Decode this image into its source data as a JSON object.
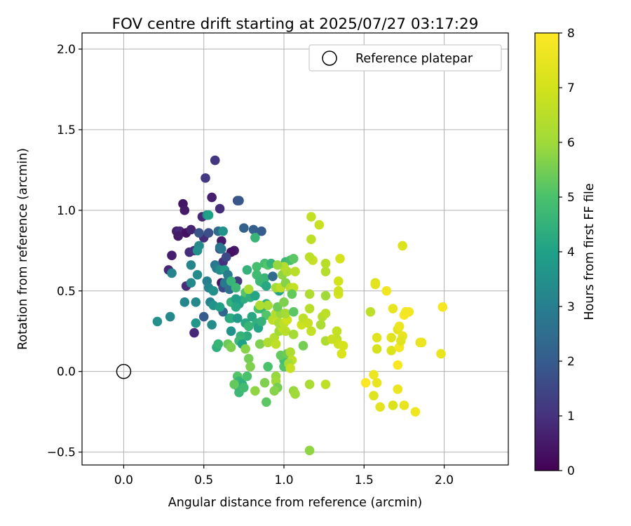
{
  "chart_data": {
    "type": "scatter",
    "title": "FOV centre drift starting at 2025/07/27 03:17:29",
    "xlabel": "Angular distance from reference (arcmin)",
    "ylabel": "Rotation from reference (arcmin)",
    "xlim": [
      -0.26,
      2.4
    ],
    "ylim": [
      -0.58,
      2.1
    ],
    "x_ticks": [
      0.0,
      0.5,
      1.0,
      1.5,
      2.0
    ],
    "x_tick_labels": [
      "0.0",
      "0.5",
      "1.0",
      "1.5",
      "2.0"
    ],
    "y_ticks": [
      -0.5,
      0.0,
      0.5,
      1.0,
      1.5,
      2.0
    ],
    "y_tick_labels": [
      "−0.5",
      "0.0",
      "0.5",
      "1.0",
      "1.5",
      "2.0"
    ],
    "grid": true,
    "legend": {
      "position": "top-right",
      "label": "Reference platepar"
    },
    "reference_point": {
      "x": 0.0,
      "y": 0.0
    },
    "colorbar": {
      "label": "Hours from first FF file",
      "range": [
        0,
        8
      ],
      "ticks": [
        0,
        1,
        2,
        3,
        4,
        5,
        6,
        7,
        8
      ],
      "tick_labels": [
        "0",
        "1",
        "2",
        "3",
        "4",
        "5",
        "6",
        "7",
        "8"
      ],
      "colormap": "viridis"
    },
    "points": [
      {
        "x": 0.37,
        "y": 1.04,
        "c": 0.4
      },
      {
        "x": 0.38,
        "y": 1.0,
        "c": 0.5
      },
      {
        "x": 0.33,
        "y": 0.87,
        "c": 0.6
      },
      {
        "x": 0.35,
        "y": 0.87,
        "c": 0.8
      },
      {
        "x": 0.39,
        "y": 0.86,
        "c": 0.3
      },
      {
        "x": 0.42,
        "y": 0.88,
        "c": 0.7
      },
      {
        "x": 0.34,
        "y": 0.84,
        "c": 0.5
      },
      {
        "x": 0.3,
        "y": 0.72,
        "c": 0.6
      },
      {
        "x": 0.28,
        "y": 0.63,
        "c": 0.8
      },
      {
        "x": 0.41,
        "y": 0.74,
        "c": 0.9
      },
      {
        "x": 0.44,
        "y": 0.75,
        "c": 1.0
      },
      {
        "x": 0.39,
        "y": 0.53,
        "c": 0.9
      },
      {
        "x": 0.44,
        "y": 0.24,
        "c": 0.8
      },
      {
        "x": 0.51,
        "y": 1.2,
        "c": 1.2
      },
      {
        "x": 0.57,
        "y": 1.31,
        "c": 1.1
      },
      {
        "x": 0.55,
        "y": 1.08,
        "c": 0.6
      },
      {
        "x": 0.6,
        "y": 1.01,
        "c": 0.9
      },
      {
        "x": 0.49,
        "y": 0.96,
        "c": 0.8
      },
      {
        "x": 0.5,
        "y": 0.83,
        "c": 0.9
      },
      {
        "x": 0.53,
        "y": 0.86,
        "c": 1.7
      },
      {
        "x": 0.47,
        "y": 0.86,
        "c": 1.8
      },
      {
        "x": 0.61,
        "y": 0.81,
        "c": 0.5
      },
      {
        "x": 0.6,
        "y": 0.76,
        "c": 1.3
      },
      {
        "x": 0.69,
        "y": 0.75,
        "c": 0.5
      },
      {
        "x": 0.67,
        "y": 0.74,
        "c": 0.3
      },
      {
        "x": 0.62,
        "y": 0.68,
        "c": 1.0
      },
      {
        "x": 0.64,
        "y": 0.71,
        "c": 1.5
      },
      {
        "x": 0.61,
        "y": 0.55,
        "c": 0.4
      },
      {
        "x": 0.62,
        "y": 0.52,
        "c": 1.6
      },
      {
        "x": 0.71,
        "y": 0.56,
        "c": 1.2
      },
      {
        "x": 0.5,
        "y": 0.34,
        "c": 2.0
      },
      {
        "x": 0.71,
        "y": 1.06,
        "c": 1.7
      },
      {
        "x": 0.72,
        "y": 1.06,
        "c": 1.9
      },
      {
        "x": 0.75,
        "y": 0.89,
        "c": 2.2
      },
      {
        "x": 0.81,
        "y": 0.88,
        "c": 2.1
      },
      {
        "x": 0.86,
        "y": 0.87,
        "c": 2.0
      },
      {
        "x": 0.52,
        "y": 0.97,
        "c": 3.3
      },
      {
        "x": 0.53,
        "y": 0.97,
        "c": 4.0
      },
      {
        "x": 0.59,
        "y": 0.87,
        "c": 2.4
      },
      {
        "x": 0.62,
        "y": 0.87,
        "c": 3.6
      },
      {
        "x": 0.47,
        "y": 0.78,
        "c": 3.3
      },
      {
        "x": 0.46,
        "y": 0.75,
        "c": 3.5
      },
      {
        "x": 0.6,
        "y": 0.77,
        "c": 2.6
      },
      {
        "x": 0.61,
        "y": 0.76,
        "c": 2.8
      },
      {
        "x": 0.42,
        "y": 0.66,
        "c": 3.2
      },
      {
        "x": 0.46,
        "y": 0.6,
        "c": 3.4
      },
      {
        "x": 0.57,
        "y": 0.66,
        "c": 2.7
      },
      {
        "x": 0.58,
        "y": 0.64,
        "c": 2.9
      },
      {
        "x": 0.6,
        "y": 0.63,
        "c": 3.4
      },
      {
        "x": 0.63,
        "y": 0.63,
        "c": 3.8
      },
      {
        "x": 0.65,
        "y": 0.6,
        "c": 2.9
      },
      {
        "x": 0.3,
        "y": 0.61,
        "c": 3.1
      },
      {
        "x": 0.42,
        "y": 0.55,
        "c": 3.3
      },
      {
        "x": 0.52,
        "y": 0.56,
        "c": 3.0
      },
      {
        "x": 0.53,
        "y": 0.52,
        "c": 3.2
      },
      {
        "x": 0.56,
        "y": 0.5,
        "c": 3.5
      },
      {
        "x": 0.63,
        "y": 0.55,
        "c": 2.8
      },
      {
        "x": 0.66,
        "y": 0.51,
        "c": 2.6
      },
      {
        "x": 0.38,
        "y": 0.43,
        "c": 3.2
      },
      {
        "x": 0.45,
        "y": 0.43,
        "c": 3.3
      },
      {
        "x": 0.54,
        "y": 0.43,
        "c": 3.1
      },
      {
        "x": 0.56,
        "y": 0.41,
        "c": 3.6
      },
      {
        "x": 0.62,
        "y": 0.37,
        "c": 2.3
      },
      {
        "x": 0.6,
        "y": 0.4,
        "c": 3.9
      },
      {
        "x": 0.21,
        "y": 0.31,
        "c": 3.5
      },
      {
        "x": 0.29,
        "y": 0.34,
        "c": 3.3
      },
      {
        "x": 0.45,
        "y": 0.3,
        "c": 3.7
      },
      {
        "x": 0.55,
        "y": 0.29,
        "c": 3.4
      },
      {
        "x": 0.58,
        "y": 0.15,
        "c": 4.4
      },
      {
        "x": 0.59,
        "y": 0.17,
        "c": 4.6
      },
      {
        "x": 0.66,
        "y": 0.33,
        "c": 4.1
      },
      {
        "x": 0.67,
        "y": 0.33,
        "c": 4.3
      },
      {
        "x": 0.71,
        "y": 0.33,
        "c": 3.8
      },
      {
        "x": 0.76,
        "y": 0.3,
        "c": 4.2
      },
      {
        "x": 0.67,
        "y": 0.25,
        "c": 3.6
      },
      {
        "x": 0.72,
        "y": 0.42,
        "c": 4.0
      },
      {
        "x": 0.75,
        "y": 0.45,
        "c": 4.3
      },
      {
        "x": 0.67,
        "y": 0.43,
        "c": 4.5
      },
      {
        "x": 0.7,
        "y": 0.45,
        "c": 3.9
      },
      {
        "x": 0.7,
        "y": 0.4,
        "c": 4.2
      },
      {
        "x": 0.67,
        "y": 0.56,
        "c": 4.6
      },
      {
        "x": 0.7,
        "y": 0.52,
        "c": 4.7
      },
      {
        "x": 0.76,
        "y": 0.49,
        "c": 5.1
      },
      {
        "x": 0.79,
        "y": 0.46,
        "c": 4.4
      },
      {
        "x": 0.82,
        "y": 0.47,
        "c": 4.1
      },
      {
        "x": 0.77,
        "y": 0.63,
        "c": 4.5
      },
      {
        "x": 0.83,
        "y": 0.65,
        "c": 4.9
      },
      {
        "x": 0.83,
        "y": 0.6,
        "c": 4.8
      },
      {
        "x": 0.87,
        "y": 0.55,
        "c": 4.3
      },
      {
        "x": 0.88,
        "y": 0.58,
        "c": 4.6
      },
      {
        "x": 0.88,
        "y": 0.67,
        "c": 4.9
      },
      {
        "x": 0.9,
        "y": 0.66,
        "c": 5.1
      },
      {
        "x": 0.85,
        "y": 0.56,
        "c": 4.7
      },
      {
        "x": 0.89,
        "y": 0.53,
        "c": 4.2
      },
      {
        "x": 0.92,
        "y": 0.67,
        "c": 4.5
      },
      {
        "x": 0.93,
        "y": 0.59,
        "c": 2.4
      },
      {
        "x": 0.96,
        "y": 0.51,
        "c": 4.4
      },
      {
        "x": 0.97,
        "y": 0.5,
        "c": 4.1
      },
      {
        "x": 1.01,
        "y": 0.68,
        "c": 4.7
      },
      {
        "x": 1.04,
        "y": 0.69,
        "c": 4.9
      },
      {
        "x": 1.06,
        "y": 0.7,
        "c": 5.2
      },
      {
        "x": 0.82,
        "y": 0.83,
        "c": 4.6
      },
      {
        "x": 0.84,
        "y": 0.39,
        "c": 5.0
      },
      {
        "x": 0.86,
        "y": 0.39,
        "c": 4.6
      },
      {
        "x": 0.89,
        "y": 0.42,
        "c": 4.4
      },
      {
        "x": 0.89,
        "y": 0.35,
        "c": 5.1
      },
      {
        "x": 0.8,
        "y": 0.34,
        "c": 4.2
      },
      {
        "x": 0.83,
        "y": 0.3,
        "c": 4.4
      },
      {
        "x": 0.84,
        "y": 0.27,
        "c": 4.1
      },
      {
        "x": 0.86,
        "y": 0.31,
        "c": 4.5
      },
      {
        "x": 0.78,
        "y": 0.28,
        "c": 4.6
      },
      {
        "x": 0.77,
        "y": 0.22,
        "c": 4.3
      },
      {
        "x": 0.73,
        "y": 0.22,
        "c": 4.5
      },
      {
        "x": 0.72,
        "y": 0.19,
        "c": 4.7
      },
      {
        "x": 0.74,
        "y": 0.17,
        "c": 4.0
      },
      {
        "x": 0.65,
        "y": 0.17,
        "c": 5.4
      },
      {
        "x": 0.67,
        "y": 0.15,
        "c": 5.6
      },
      {
        "x": 0.76,
        "y": 0.14,
        "c": 5.7
      },
      {
        "x": 0.78,
        "y": 0.08,
        "c": 5.5
      },
      {
        "x": 0.71,
        "y": -0.03,
        "c": 5.1
      },
      {
        "x": 0.72,
        "y": -0.06,
        "c": 4.6
      },
      {
        "x": 0.71,
        "y": -0.09,
        "c": 4.9
      },
      {
        "x": 0.74,
        "y": -0.08,
        "c": 4.4
      },
      {
        "x": 0.69,
        "y": -0.08,
        "c": 5.3
      },
      {
        "x": 0.72,
        "y": -0.13,
        "c": 4.7
      },
      {
        "x": 0.75,
        "y": -0.1,
        "c": 4.8
      },
      {
        "x": 0.77,
        "y": -0.03,
        "c": 5.0
      },
      {
        "x": 0.79,
        "y": 0.03,
        "c": 5.6
      },
      {
        "x": 0.82,
        "y": -0.12,
        "c": 5.8
      },
      {
        "x": 0.88,
        "y": -0.07,
        "c": 5.6
      },
      {
        "x": 0.89,
        "y": -0.19,
        "c": 5.2
      },
      {
        "x": 0.9,
        "y": 0.03,
        "c": 5.0
      },
      {
        "x": 0.95,
        "y": -0.03,
        "c": 5.9
      },
      {
        "x": 0.95,
        "y": -0.06,
        "c": 6.0
      },
      {
        "x": 0.96,
        "y": -0.1,
        "c": 5.5
      },
      {
        "x": 0.94,
        "y": -0.12,
        "c": 5.7
      },
      {
        "x": 1.0,
        "y": 0.03,
        "c": 5.1
      },
      {
        "x": 1.0,
        "y": 0.07,
        "c": 4.9
      },
      {
        "x": 0.98,
        "y": 0.1,
        "c": 5.3
      },
      {
        "x": 1.02,
        "y": 0.11,
        "c": 5.4
      },
      {
        "x": 1.04,
        "y": 0.12,
        "c": 6.3
      },
      {
        "x": 1.05,
        "y": 0.07,
        "c": 6.6
      },
      {
        "x": 1.03,
        "y": 0.05,
        "c": 6.1
      },
      {
        "x": 1.04,
        "y": 0.02,
        "c": 6.8
      },
      {
        "x": 1.06,
        "y": -0.12,
        "c": 5.9
      },
      {
        "x": 1.07,
        "y": -0.14,
        "c": 6.0
      },
      {
        "x": 1.16,
        "y": -0.08,
        "c": 6.2
      },
      {
        "x": 1.16,
        "y": -0.49,
        "c": 5.8
      },
      {
        "x": 1.26,
        "y": -0.08,
        "c": 6.6
      },
      {
        "x": 0.85,
        "y": 0.17,
        "c": 5.6
      },
      {
        "x": 0.9,
        "y": 0.18,
        "c": 6.3
      },
      {
        "x": 0.94,
        "y": 0.21,
        "c": 6.4
      },
      {
        "x": 0.95,
        "y": 0.17,
        "c": 6.6
      },
      {
        "x": 0.97,
        "y": 0.25,
        "c": 6.0
      },
      {
        "x": 0.99,
        "y": 0.27,
        "c": 6.7
      },
      {
        "x": 1.01,
        "y": 0.25,
        "c": 6.5
      },
      {
        "x": 1.06,
        "y": 0.23,
        "c": 6.1
      },
      {
        "x": 0.93,
        "y": 0.32,
        "c": 6.5
      },
      {
        "x": 0.96,
        "y": 0.31,
        "c": 6.8
      },
      {
        "x": 0.97,
        "y": 0.3,
        "c": 6.2
      },
      {
        "x": 1.0,
        "y": 0.3,
        "c": 6.6
      },
      {
        "x": 1.02,
        "y": 0.32,
        "c": 6.9
      },
      {
        "x": 0.95,
        "y": 0.36,
        "c": 6.4
      },
      {
        "x": 0.98,
        "y": 0.36,
        "c": 5.9
      },
      {
        "x": 1.01,
        "y": 0.36,
        "c": 6.1
      },
      {
        "x": 0.85,
        "y": 0.41,
        "c": 6.3
      },
      {
        "x": 0.9,
        "y": 0.41,
        "c": 6.2
      },
      {
        "x": 0.96,
        "y": 0.4,
        "c": 5.4
      },
      {
        "x": 1.0,
        "y": 0.43,
        "c": 5.6
      },
      {
        "x": 0.78,
        "y": 0.51,
        "c": 6.2
      },
      {
        "x": 0.95,
        "y": 0.52,
        "c": 6.1
      },
      {
        "x": 0.98,
        "y": 0.52,
        "c": 6.6
      },
      {
        "x": 1.01,
        "y": 0.55,
        "c": 5.7
      },
      {
        "x": 1.04,
        "y": 0.52,
        "c": 6.4
      },
      {
        "x": 1.06,
        "y": 0.52,
        "c": 6.7
      },
      {
        "x": 0.99,
        "y": 0.6,
        "c": 5.8
      },
      {
        "x": 1.02,
        "y": 0.62,
        "c": 6.3
      },
      {
        "x": 1.07,
        "y": 0.62,
        "c": 6.5
      },
      {
        "x": 1.0,
        "y": 0.65,
        "c": 6.4
      },
      {
        "x": 0.96,
        "y": 0.66,
        "c": 5.9
      },
      {
        "x": 1.11,
        "y": 0.29,
        "c": 6.9
      },
      {
        "x": 1.12,
        "y": 0.33,
        "c": 6.6
      },
      {
        "x": 1.12,
        "y": 0.16,
        "c": 5.5
      },
      {
        "x": 1.06,
        "y": 0.37,
        "c": 5.2
      },
      {
        "x": 1.05,
        "y": 0.48,
        "c": 5.3
      },
      {
        "x": 1.16,
        "y": 0.48,
        "c": 6.3
      },
      {
        "x": 1.16,
        "y": 0.39,
        "c": 6.5
      },
      {
        "x": 1.15,
        "y": 0.3,
        "c": 6.8
      },
      {
        "x": 1.17,
        "y": 0.25,
        "c": 6.7
      },
      {
        "x": 1.23,
        "y": 0.29,
        "c": 6.2
      },
      {
        "x": 1.24,
        "y": 0.34,
        "c": 6.4
      },
      {
        "x": 1.26,
        "y": 0.36,
        "c": 6.6
      },
      {
        "x": 1.26,
        "y": 0.19,
        "c": 6.3
      },
      {
        "x": 1.26,
        "y": 0.47,
        "c": 6.0
      },
      {
        "x": 1.26,
        "y": 0.62,
        "c": 6.4
      },
      {
        "x": 1.26,
        "y": 0.67,
        "c": 6.5
      },
      {
        "x": 1.18,
        "y": 0.69,
        "c": 6.8
      },
      {
        "x": 1.16,
        "y": 0.71,
        "c": 6.6
      },
      {
        "x": 1.17,
        "y": 0.82,
        "c": 6.6
      },
      {
        "x": 1.17,
        "y": 0.96,
        "c": 6.7
      },
      {
        "x": 1.22,
        "y": 0.91,
        "c": 6.8
      },
      {
        "x": 1.33,
        "y": 0.25,
        "c": 6.7
      },
      {
        "x": 1.34,
        "y": 0.56,
        "c": 7.0
      },
      {
        "x": 1.34,
        "y": 0.48,
        "c": 7.1
      },
      {
        "x": 1.34,
        "y": 0.5,
        "c": 6.9
      },
      {
        "x": 1.35,
        "y": 0.7,
        "c": 7.1
      },
      {
        "x": 1.33,
        "y": 0.2,
        "c": 6.6
      },
      {
        "x": 1.34,
        "y": 0.17,
        "c": 6.9
      },
      {
        "x": 1.36,
        "y": 0.11,
        "c": 7.2
      },
      {
        "x": 1.37,
        "y": 0.16,
        "c": 7.1
      },
      {
        "x": 1.3,
        "y": 0.2,
        "c": 6.8
      },
      {
        "x": 1.54,
        "y": 0.37,
        "c": 6.6
      },
      {
        "x": 1.57,
        "y": 0.55,
        "c": 7.2
      },
      {
        "x": 1.57,
        "y": 0.54,
        "c": 7.4
      },
      {
        "x": 1.58,
        "y": 0.21,
        "c": 7.3
      },
      {
        "x": 1.58,
        "y": 0.14,
        "c": 7.1
      },
      {
        "x": 1.58,
        "y": -0.07,
        "c": 7.5
      },
      {
        "x": 1.56,
        "y": -0.02,
        "c": 7.6
      },
      {
        "x": 1.56,
        "y": -0.15,
        "c": 7.3
      },
      {
        "x": 1.51,
        "y": -0.07,
        "c": 8.0
      },
      {
        "x": 1.6,
        "y": -0.22,
        "c": 7.4
      },
      {
        "x": 1.64,
        "y": 0.5,
        "c": 7.7
      },
      {
        "x": 1.67,
        "y": 0.21,
        "c": 7.3
      },
      {
        "x": 1.67,
        "y": 0.13,
        "c": 7.2
      },
      {
        "x": 1.68,
        "y": 0.39,
        "c": 7.5
      },
      {
        "x": 1.71,
        "y": 0.26,
        "c": 7.4
      },
      {
        "x": 1.72,
        "y": 0.28,
        "c": 7.6
      },
      {
        "x": 1.72,
        "y": 0.15,
        "c": 7.8
      },
      {
        "x": 1.74,
        "y": 0.22,
        "c": 7.5
      },
      {
        "x": 1.73,
        "y": 0.19,
        "c": 7.3
      },
      {
        "x": 1.75,
        "y": 0.35,
        "c": 7.9
      },
      {
        "x": 1.76,
        "y": 0.37,
        "c": 7.7
      },
      {
        "x": 1.78,
        "y": 0.37,
        "c": 7.8
      },
      {
        "x": 1.71,
        "y": 0.04,
        "c": 7.9
      },
      {
        "x": 1.71,
        "y": -0.11,
        "c": 7.6
      },
      {
        "x": 1.68,
        "y": -0.21,
        "c": 7.2
      },
      {
        "x": 1.75,
        "y": -0.21,
        "c": 7.5
      },
      {
        "x": 1.82,
        "y": -0.25,
        "c": 7.7
      },
      {
        "x": 1.74,
        "y": 0.78,
        "c": 7.2
      },
      {
        "x": 1.85,
        "y": 0.18,
        "c": 7.4
      },
      {
        "x": 1.86,
        "y": 0.18,
        "c": 7.6
      },
      {
        "x": 1.98,
        "y": 0.11,
        "c": 7.5
      },
      {
        "x": 1.99,
        "y": 0.4,
        "c": 7.8
      }
    ]
  }
}
